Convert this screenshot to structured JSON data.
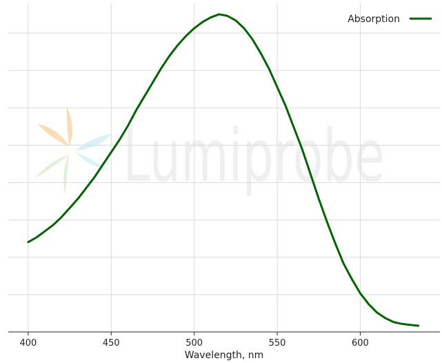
{
  "chart_data": {
    "type": "line",
    "title": "",
    "xlabel": "Wavelength, nm",
    "ylabel": "",
    "xlim": [
      388,
      648
    ],
    "ylim": [
      -0.02,
      1.04
    ],
    "x_ticks": [
      400,
      450,
      500,
      550,
      600
    ],
    "y_grid_count": 8,
    "grid": true,
    "legend_position": "top-right",
    "series": [
      {
        "name": "Absorption",
        "color": "#006400",
        "x": [
          400,
          405,
          410,
          415,
          420,
          425,
          430,
          435,
          440,
          445,
          450,
          455,
          460,
          465,
          470,
          475,
          480,
          485,
          490,
          495,
          500,
          505,
          510,
          515,
          520,
          525,
          530,
          535,
          540,
          545,
          550,
          555,
          560,
          565,
          570,
          575,
          580,
          585,
          590,
          595,
          600,
          605,
          610,
          615,
          620,
          625,
          630,
          635
        ],
        "y": [
          0.27,
          0.285,
          0.305,
          0.325,
          0.35,
          0.38,
          0.41,
          0.445,
          0.48,
          0.52,
          0.56,
          0.6,
          0.645,
          0.695,
          0.74,
          0.785,
          0.83,
          0.87,
          0.905,
          0.935,
          0.96,
          0.98,
          0.995,
          1.005,
          1.0,
          0.985,
          0.96,
          0.925,
          0.88,
          0.83,
          0.77,
          0.71,
          0.64,
          0.57,
          0.49,
          0.41,
          0.335,
          0.265,
          0.2,
          0.15,
          0.105,
          0.07,
          0.043,
          0.025,
          0.012,
          0.006,
          0.003,
          0.0
        ]
      }
    ]
  },
  "watermark": {
    "text": "Lumiprobe"
  },
  "colors": {
    "line": "#006400",
    "grid": "#d9d9d9",
    "axis": "#222222"
  }
}
